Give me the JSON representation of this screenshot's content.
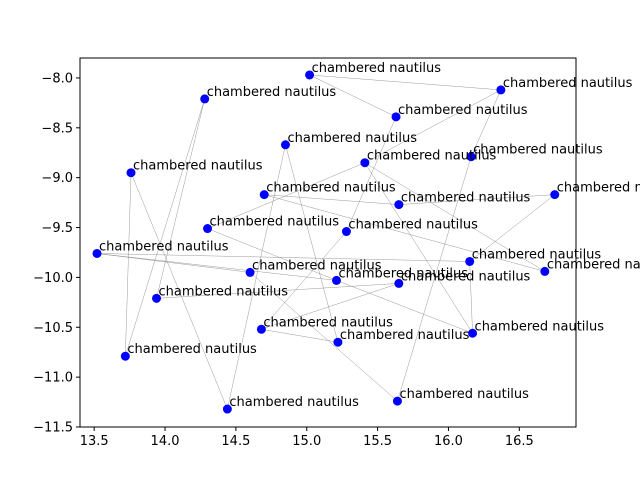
{
  "chart_data": {
    "type": "scatter",
    "title": "",
    "xlabel": "",
    "ylabel": "",
    "xlim": [
      13.4,
      16.9
    ],
    "ylim": [
      -11.5,
      -7.8
    ],
    "xticks": [
      "13.5",
      "14.0",
      "14.5",
      "15.0",
      "15.5",
      "16.0",
      "16.5"
    ],
    "yticks": [
      "−8.0",
      "−8.5",
      "−9.0",
      "−9.5",
      "−10.0",
      "−10.5",
      "−11.0",
      "−11.5"
    ],
    "xtick_values": [
      13.5,
      14.0,
      14.5,
      15.0,
      15.5,
      16.0,
      16.5
    ],
    "ytick_values": [
      -8.0,
      -8.5,
      -9.0,
      -9.5,
      -10.0,
      -10.5,
      -11.0,
      -11.5
    ],
    "grid": false,
    "marker_color": "#0000ff",
    "line_color": "#808080",
    "points": [
      {
        "x": 15.02,
        "y": -7.97,
        "label": "chambered nautilus"
      },
      {
        "x": 16.37,
        "y": -8.12,
        "label": "chambered nautilus"
      },
      {
        "x": 14.28,
        "y": -8.21,
        "label": "chambered nautilus"
      },
      {
        "x": 15.63,
        "y": -8.39,
        "label": "chambered nautilus"
      },
      {
        "x": 14.85,
        "y": -8.67,
        "label": "chambered nautilus"
      },
      {
        "x": 16.16,
        "y": -8.79,
        "label": "chambered nautilus"
      },
      {
        "x": 15.41,
        "y": -8.85,
        "label": "chambered nautilus"
      },
      {
        "x": 13.76,
        "y": -8.95,
        "label": "chambered nautilus"
      },
      {
        "x": 16.75,
        "y": -9.17,
        "label": "chambered nautilus"
      },
      {
        "x": 14.7,
        "y": -9.17,
        "label": "chambered nautilus"
      },
      {
        "x": 15.65,
        "y": -9.27,
        "label": "chambered nautilus"
      },
      {
        "x": 14.3,
        "y": -9.51,
        "label": "chambered nautilus"
      },
      {
        "x": 15.28,
        "y": -9.54,
        "label": "chambered nautilus"
      },
      {
        "x": 13.52,
        "y": -9.76,
        "label": "chambered nautilus"
      },
      {
        "x": 16.15,
        "y": -9.84,
        "label": "chambered nautilus"
      },
      {
        "x": 16.68,
        "y": -9.94,
        "label": "chambered nautilus"
      },
      {
        "x": 14.6,
        "y": -9.95,
        "label": "chambered nautilus"
      },
      {
        "x": 15.21,
        "y": -10.03,
        "label": "chambered nautilus"
      },
      {
        "x": 15.65,
        "y": -10.06,
        "label": "chambered nautilus"
      },
      {
        "x": 13.94,
        "y": -10.21,
        "label": "chambered nautilus"
      },
      {
        "x": 14.68,
        "y": -10.52,
        "label": "chambered nautilus"
      },
      {
        "x": 16.17,
        "y": -10.56,
        "label": "chambered nautilus"
      },
      {
        "x": 15.22,
        "y": -10.65,
        "label": "chambered nautilus"
      },
      {
        "x": 13.72,
        "y": -10.79,
        "label": "chambered nautilus"
      },
      {
        "x": 15.64,
        "y": -11.24,
        "label": "chambered nautilus"
      },
      {
        "x": 14.44,
        "y": -11.32,
        "label": "chambered nautilus"
      }
    ],
    "connections": [
      [
        0,
        1
      ],
      [
        0,
        3
      ],
      [
        3,
        12
      ],
      [
        12,
        20
      ],
      [
        20,
        18
      ],
      [
        1,
        5
      ],
      [
        5,
        24
      ],
      [
        24,
        16
      ],
      [
        16,
        13
      ],
      [
        13,
        14
      ],
      [
        2,
        19
      ],
      [
        19,
        18
      ],
      [
        2,
        23
      ],
      [
        23,
        7
      ],
      [
        7,
        25
      ],
      [
        25,
        4
      ],
      [
        4,
        22
      ],
      [
        22,
        20
      ],
      [
        6,
        11
      ],
      [
        6,
        21
      ],
      [
        6,
        15
      ],
      [
        9,
        15
      ],
      [
        9,
        10
      ],
      [
        10,
        8
      ],
      [
        8,
        14
      ],
      [
        14,
        21
      ],
      [
        11,
        17
      ],
      [
        17,
        13
      ],
      [
        17,
        21
      ],
      [
        6,
        1
      ]
    ]
  }
}
